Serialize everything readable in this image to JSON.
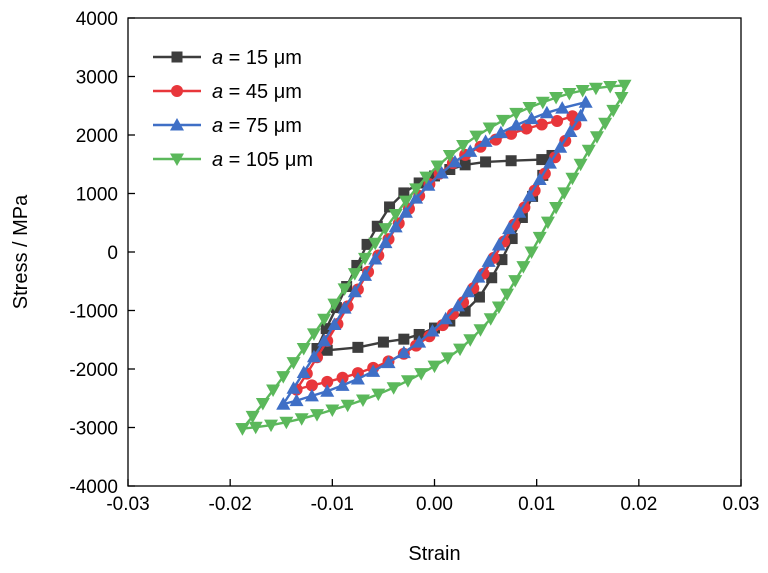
{
  "chart_data": {
    "type": "line",
    "xlabel": "Strain",
    "ylabel": "Stress / MPa",
    "xlim": [
      -0.03,
      0.03
    ],
    "ylim": [
      -4000,
      4000
    ],
    "x_ticks": [
      "-0.03",
      "-0.02",
      "-0.01",
      "0.00",
      "0.01",
      "0.02",
      "0.03"
    ],
    "y_ticks": [
      "-4000",
      "-3000",
      "-2000",
      "-1000",
      "0",
      "1000",
      "2000",
      "3000",
      "4000"
    ],
    "grid": false,
    "legend_position": "top-left",
    "series": [
      {
        "name": "a = 15 μm",
        "legend_var": "a",
        "legend_rest": " = 15 μm",
        "color": "#3d3d3d",
        "marker": "square",
        "points": [
          [
            -0.0115,
            -1650
          ],
          [
            -0.0106,
            -1310
          ],
          [
            -0.0096,
            -950
          ],
          [
            -0.0086,
            -590
          ],
          [
            -0.0076,
            -230
          ],
          [
            -0.0066,
            130
          ],
          [
            -0.0056,
            440
          ],
          [
            -0.0044,
            770
          ],
          [
            -0.003,
            1010
          ],
          [
            -0.0015,
            1180
          ],
          [
            0.0,
            1300
          ],
          [
            0.0015,
            1410
          ],
          [
            0.003,
            1490
          ],
          [
            0.005,
            1540
          ],
          [
            0.0075,
            1560
          ],
          [
            0.0105,
            1580
          ],
          [
            0.0115,
            1650
          ],
          [
            0.0106,
            1310
          ],
          [
            0.0096,
            950
          ],
          [
            0.0086,
            590
          ],
          [
            0.0076,
            230
          ],
          [
            0.0066,
            -130
          ],
          [
            0.0056,
            -440
          ],
          [
            0.0044,
            -770
          ],
          [
            0.003,
            -1010
          ],
          [
            0.0015,
            -1180
          ],
          [
            0.0,
            -1300
          ],
          [
            -0.0015,
            -1410
          ],
          [
            -0.003,
            -1490
          ],
          [
            -0.005,
            -1540
          ],
          [
            -0.0075,
            -1630
          ],
          [
            -0.0105,
            -1680
          ],
          [
            -0.0115,
            -1650
          ]
        ]
      },
      {
        "name": "a = 45 μm",
        "legend_var": "a",
        "legend_rest": " = 45 μm",
        "color": "#e8363b",
        "marker": "circle",
        "points": [
          [
            -0.0135,
            -2350
          ],
          [
            -0.0125,
            -2080
          ],
          [
            -0.0115,
            -1800
          ],
          [
            -0.0105,
            -1520
          ],
          [
            -0.0095,
            -1230
          ],
          [
            -0.0085,
            -930
          ],
          [
            -0.0075,
            -640
          ],
          [
            -0.0065,
            -340
          ],
          [
            -0.0055,
            -60
          ],
          [
            -0.0045,
            220
          ],
          [
            -0.0035,
            490
          ],
          [
            -0.0025,
            740
          ],
          [
            -0.0015,
            960
          ],
          [
            -0.0005,
            1160
          ],
          [
            0.0005,
            1340
          ],
          [
            0.0018,
            1520
          ],
          [
            0.003,
            1660
          ],
          [
            0.0045,
            1800
          ],
          [
            0.006,
            1920
          ],
          [
            0.0075,
            2020
          ],
          [
            0.009,
            2110
          ],
          [
            0.0105,
            2180
          ],
          [
            0.012,
            2240
          ],
          [
            0.0135,
            2320
          ],
          [
            0.0138,
            2180
          ],
          [
            0.0128,
            1900
          ],
          [
            0.0118,
            1620
          ],
          [
            0.0108,
            1340
          ],
          [
            0.0098,
            1050
          ],
          [
            0.0088,
            760
          ],
          [
            0.0078,
            470
          ],
          [
            0.0068,
            180
          ],
          [
            0.0058,
            -100
          ],
          [
            0.0048,
            -370
          ],
          [
            0.0038,
            -620
          ],
          [
            0.0028,
            -860
          ],
          [
            0.0018,
            -1060
          ],
          [
            0.0008,
            -1250
          ],
          [
            -0.0005,
            -1440
          ],
          [
            -0.0018,
            -1600
          ],
          [
            -0.003,
            -1740
          ],
          [
            -0.0045,
            -1870
          ],
          [
            -0.006,
            -1980
          ],
          [
            -0.0075,
            -2070
          ],
          [
            -0.009,
            -2150
          ],
          [
            -0.0105,
            -2220
          ],
          [
            -0.012,
            -2280
          ],
          [
            -0.0135,
            -2350
          ]
        ]
      },
      {
        "name": "a = 75 μm",
        "legend_var": "a",
        "legend_rest": " = 75 μm",
        "color": "#3f6fc6",
        "marker": "triangle-up",
        "points": [
          [
            -0.0148,
            -2600
          ],
          [
            -0.0138,
            -2330
          ],
          [
            -0.0128,
            -2060
          ],
          [
            -0.0118,
            -1790
          ],
          [
            -0.0108,
            -1520
          ],
          [
            -0.0098,
            -1240
          ],
          [
            -0.0088,
            -960
          ],
          [
            -0.0078,
            -680
          ],
          [
            -0.0068,
            -400
          ],
          [
            -0.0058,
            -120
          ],
          [
            -0.0048,
            160
          ],
          [
            -0.0038,
            430
          ],
          [
            -0.0028,
            680
          ],
          [
            -0.0018,
            920
          ],
          [
            -0.0006,
            1140
          ],
          [
            0.0007,
            1350
          ],
          [
            0.002,
            1540
          ],
          [
            0.0035,
            1720
          ],
          [
            0.005,
            1890
          ],
          [
            0.0065,
            2040
          ],
          [
            0.008,
            2170
          ],
          [
            0.0095,
            2280
          ],
          [
            0.011,
            2380
          ],
          [
            0.0125,
            2460
          ],
          [
            0.0148,
            2560
          ],
          [
            0.0143,
            2330
          ],
          [
            0.0133,
            2060
          ],
          [
            0.0123,
            1790
          ],
          [
            0.0113,
            1520
          ],
          [
            0.0103,
            1240
          ],
          [
            0.0093,
            960
          ],
          [
            0.0083,
            680
          ],
          [
            0.0073,
            400
          ],
          [
            0.0063,
            120
          ],
          [
            0.0053,
            -160
          ],
          [
            0.0043,
            -430
          ],
          [
            0.0033,
            -680
          ],
          [
            0.0023,
            -920
          ],
          [
            0.0011,
            -1140
          ],
          [
            -0.0002,
            -1350
          ],
          [
            -0.0015,
            -1540
          ],
          [
            -0.003,
            -1720
          ],
          [
            -0.0045,
            -1890
          ],
          [
            -0.006,
            -2040
          ],
          [
            -0.0075,
            -2170
          ],
          [
            -0.009,
            -2280
          ],
          [
            -0.0105,
            -2380
          ],
          [
            -0.012,
            -2460
          ],
          [
            -0.0135,
            -2540
          ],
          [
            -0.0148,
            -2600
          ]
        ]
      },
      {
        "name": "a = 105 μm",
        "legend_var": "a",
        "legend_rest": " = 105 μm",
        "color": "#5bb85b",
        "marker": "triangle-down",
        "points": [
          [
            -0.0188,
            -3020
          ],
          [
            -0.0178,
            -2810
          ],
          [
            -0.0168,
            -2590
          ],
          [
            -0.0158,
            -2360
          ],
          [
            -0.0148,
            -2130
          ],
          [
            -0.0138,
            -1890
          ],
          [
            -0.0128,
            -1650
          ],
          [
            -0.0118,
            -1400
          ],
          [
            -0.0108,
            -1150
          ],
          [
            -0.0098,
            -890
          ],
          [
            -0.0088,
            -630
          ],
          [
            -0.0078,
            -370
          ],
          [
            -0.0068,
            -110
          ],
          [
            -0.0058,
            150
          ],
          [
            -0.0048,
            400
          ],
          [
            -0.0038,
            640
          ],
          [
            -0.0028,
            870
          ],
          [
            -0.0018,
            1080
          ],
          [
            -0.0008,
            1280
          ],
          [
            0.0003,
            1470
          ],
          [
            0.0015,
            1650
          ],
          [
            0.0028,
            1820
          ],
          [
            0.0041,
            1980
          ],
          [
            0.0054,
            2120
          ],
          [
            0.0067,
            2250
          ],
          [
            0.008,
            2370
          ],
          [
            0.0093,
            2470
          ],
          [
            0.0106,
            2560
          ],
          [
            0.0119,
            2640
          ],
          [
            0.0132,
            2710
          ],
          [
            0.0145,
            2760
          ],
          [
            0.0158,
            2800
          ],
          [
            0.0172,
            2830
          ],
          [
            0.0186,
            2850
          ],
          [
            0.0183,
            2640
          ],
          [
            0.0175,
            2420
          ],
          [
            0.0167,
            2200
          ],
          [
            0.0159,
            1970
          ],
          [
            0.0151,
            1740
          ],
          [
            0.0143,
            1500
          ],
          [
            0.0135,
            1260
          ],
          [
            0.0127,
            1010
          ],
          [
            0.0119,
            760
          ],
          [
            0.0111,
            510
          ],
          [
            0.0103,
            250
          ],
          [
            0.0095,
            0
          ],
          [
            0.0087,
            -250
          ],
          [
            0.0079,
            -490
          ],
          [
            0.0071,
            -720
          ],
          [
            0.0063,
            -940
          ],
          [
            0.0055,
            -1140
          ],
          [
            0.0045,
            -1330
          ],
          [
            0.0035,
            -1500
          ],
          [
            0.0025,
            -1660
          ],
          [
            0.0013,
            -1810
          ],
          [
            0.0,
            -1950
          ],
          [
            -0.0013,
            -2080
          ],
          [
            -0.0026,
            -2200
          ],
          [
            -0.004,
            -2320
          ],
          [
            -0.0055,
            -2430
          ],
          [
            -0.007,
            -2530
          ],
          [
            -0.0085,
            -2620
          ],
          [
            -0.01,
            -2700
          ],
          [
            -0.0115,
            -2780
          ],
          [
            -0.013,
            -2850
          ],
          [
            -0.0145,
            -2910
          ],
          [
            -0.016,
            -2960
          ],
          [
            -0.0175,
            -2995
          ],
          [
            -0.0188,
            -3020
          ]
        ]
      }
    ]
  }
}
